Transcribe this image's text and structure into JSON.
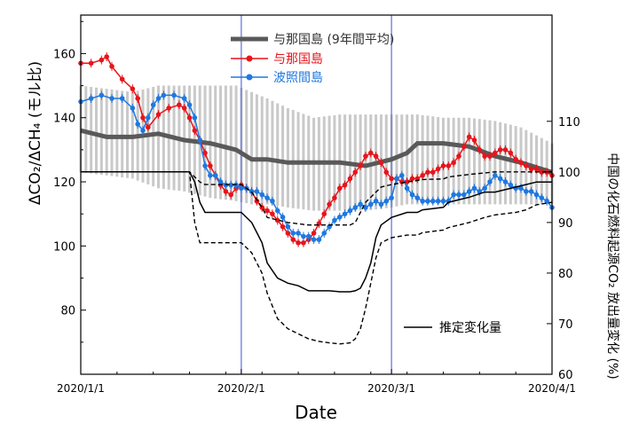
{
  "chart_data": {
    "type": "line",
    "xlabel": "Date",
    "ylabel_left": "ΔCO₂/ΔCH₄ (モル比)",
    "ylabel_right": "中国の化石燃料起源CO₂ 放出量変化 (%)",
    "x_tick_labels": [
      "2020/1/1",
      "2020/2/1",
      "2020/3/1",
      "2020/4/1"
    ],
    "x_range_days": [
      0,
      91
    ],
    "vlines_days": [
      31,
      60
    ],
    "left_axis": {
      "ticks": [
        80,
        100,
        120,
        140,
        160
      ],
      "range": [
        60,
        172
      ]
    },
    "right_axis": {
      "ticks": [
        60,
        70,
        80,
        90,
        100,
        110
      ],
      "range": [
        60,
        131
      ]
    },
    "legend_top": [
      {
        "label": "与那国島 (9年間平均)",
        "color": "#595959"
      },
      {
        "label": "与那国島",
        "color": "#e8141b"
      },
      {
        "label": "波照間島",
        "color": "#1f78e0"
      }
    ],
    "legend_bottom": {
      "label": "推定変化量",
      "color": "#000000"
    },
    "series": [
      {
        "name": "与那国島 (9年間平均)",
        "axis": "left",
        "color": "#595959",
        "x": [
          0,
          5,
          10,
          15,
          20,
          25,
          30,
          33,
          36,
          40,
          45,
          50,
          55,
          60,
          63,
          65,
          70,
          75,
          80,
          85,
          91
        ],
        "y": [
          136,
          134,
          134,
          135,
          133,
          132,
          130,
          127,
          127,
          126,
          126,
          126,
          125,
          127,
          129,
          132,
          132,
          131,
          128,
          126,
          123
        ],
        "band_upper": [
          150,
          149,
          148,
          150,
          150,
          150,
          150,
          148,
          146,
          143,
          140,
          141,
          141,
          141,
          141,
          141,
          140,
          140,
          139,
          137,
          132
        ],
        "band_lower": [
          123,
          122,
          121,
          118,
          117,
          115,
          114,
          113,
          113,
          112,
          111,
          111,
          111,
          112,
          113,
          113,
          113,
          113,
          113,
          113,
          113
        ]
      },
      {
        "name": "与那国島",
        "axis": "left",
        "color": "#e8141b",
        "x": [
          0,
          2,
          4,
          5,
          6,
          8,
          10,
          11,
          12,
          13,
          15,
          17,
          19,
          20,
          21,
          22,
          23,
          24,
          25,
          26,
          27,
          28,
          29,
          30,
          31,
          32,
          33,
          34,
          35,
          36,
          37,
          38,
          39,
          40,
          41,
          42,
          43,
          44,
          45,
          46,
          47,
          48,
          49,
          50,
          51,
          52,
          53,
          54,
          55,
          56,
          57,
          58,
          59,
          60,
          61,
          62,
          63,
          64,
          65,
          66,
          67,
          68,
          69,
          70,
          71,
          72,
          73,
          74,
          75,
          76,
          77,
          78,
          79,
          80,
          81,
          82,
          83,
          84,
          85,
          86,
          87,
          88,
          89,
          90,
          91
        ],
        "y": [
          157,
          157,
          158,
          159,
          156,
          152,
          149,
          146,
          140,
          137,
          141,
          143,
          144,
          143,
          140,
          136,
          133,
          129,
          125,
          122,
          119,
          117,
          116,
          118,
          119,
          118,
          117,
          114,
          112,
          111,
          110,
          108,
          106,
          104,
          102,
          101,
          101,
          102,
          104,
          107,
          110,
          113,
          115,
          118,
          119,
          121,
          123,
          125,
          128,
          129,
          128,
          126,
          123,
          121,
          121,
          120,
          120,
          121,
          121,
          122,
          123,
          123,
          124,
          125,
          125,
          126,
          128,
          131,
          134,
          133,
          130,
          128,
          128,
          129,
          130,
          130,
          129,
          127,
          126,
          125,
          124,
          124,
          123,
          123,
          122
        ]
      },
      {
        "name": "波照間島",
        "axis": "left",
        "color": "#1f78e0",
        "x": [
          0,
          2,
          4,
          6,
          8,
          10,
          11,
          12,
          13,
          14,
          15,
          16,
          18,
          20,
          21,
          22,
          23,
          24,
          25,
          26,
          27,
          28,
          29,
          30,
          31,
          32,
          33,
          34,
          35,
          36,
          37,
          38,
          39,
          40,
          41,
          42,
          43,
          44,
          45,
          46,
          47,
          48,
          49,
          50,
          51,
          52,
          53,
          54,
          55,
          56,
          57,
          58,
          59,
          60,
          61,
          62,
          63,
          64,
          65,
          66,
          67,
          68,
          69,
          70,
          71,
          72,
          73,
          74,
          75,
          76,
          77,
          78,
          79,
          80,
          81,
          82,
          83,
          84,
          85,
          86,
          87,
          88,
          89,
          90,
          91
        ],
        "y": [
          145,
          146,
          147,
          146,
          146,
          143,
          138,
          136,
          140,
          144,
          146,
          147,
          147,
          146,
          144,
          140,
          133,
          125,
          122,
          122,
          120,
          119,
          119,
          119,
          118,
          118,
          117,
          117,
          116,
          115,
          114,
          111,
          109,
          106,
          104,
          104,
          103,
          103,
          102,
          102,
          104,
          106,
          108,
          109,
          110,
          111,
          112,
          113,
          112,
          113,
          114,
          113,
          114,
          115,
          121,
          122,
          118,
          116,
          115,
          114,
          114,
          114,
          114,
          114,
          114,
          116,
          116,
          116,
          117,
          118,
          117,
          118,
          120,
          122,
          121,
          120,
          119,
          118,
          118,
          117,
          117,
          116,
          115,
          114,
          112
        ]
      },
      {
        "name": "推定変化量",
        "axis": "right",
        "style": "solid",
        "color": "#000000",
        "x": [
          0,
          21,
          22,
          23,
          24,
          30,
          31,
          33,
          35,
          36,
          38,
          40,
          42,
          44,
          46,
          48,
          50,
          52,
          53,
          54,
          55,
          56,
          57,
          58,
          60,
          63,
          65,
          66,
          70,
          71,
          75,
          78,
          80,
          84,
          86,
          88,
          91
        ],
        "y": [
          100,
          100,
          98,
          94,
          92,
          92,
          92,
          90,
          86,
          82,
          79,
          78,
          77.5,
          76.5,
          76.5,
          76.5,
          76.3,
          76.3,
          76.5,
          77,
          79,
          82,
          87,
          89.5,
          91,
          92,
          92,
          92.5,
          93,
          94,
          95,
          96,
          96,
          97,
          97.5,
          98,
          98
        ]
      },
      {
        "name": "",
        "axis": "right",
        "style": "dashed",
        "color": "#000000",
        "x": [
          0,
          21,
          23,
          24,
          30,
          31,
          33,
          35,
          36,
          40,
          44,
          48,
          50,
          52,
          53,
          54,
          55,
          56,
          57,
          58,
          60,
          63,
          65,
          66,
          70,
          71,
          75,
          78,
          80,
          84,
          86,
          88,
          91
        ],
        "y": [
          100,
          100,
          98,
          97.5,
          97.5,
          97.5,
          96,
          93,
          91,
          90,
          89.5,
          89.5,
          89.5,
          89.5,
          90,
          92,
          94,
          95,
          96,
          97,
          97.5,
          98,
          98.3,
          98.5,
          98.6,
          99,
          99.5,
          99.8,
          100,
          100,
          100,
          100,
          100
        ]
      },
      {
        "name": "",
        "axis": "right",
        "style": "dashed",
        "color": "#000000",
        "x": [
          0,
          21,
          22,
          23,
          24,
          30,
          31,
          33,
          35,
          36,
          38,
          40,
          42,
          44,
          46,
          48,
          50,
          52,
          53,
          54,
          55,
          56,
          57,
          58,
          60,
          63,
          65,
          66,
          70,
          71,
          75,
          78,
          80,
          84,
          86,
          88,
          91
        ],
        "y": [
          100,
          100,
          90,
          86,
          86,
          86,
          86,
          84,
          80,
          76,
          71,
          69,
          68,
          67,
          66.5,
          66.2,
          66,
          66.2,
          67,
          69,
          73,
          78,
          83,
          86,
          87,
          87.5,
          87.5,
          88,
          88.5,
          89,
          90,
          91,
          91.5,
          92,
          92.5,
          93.5,
          94
        ]
      }
    ]
  }
}
